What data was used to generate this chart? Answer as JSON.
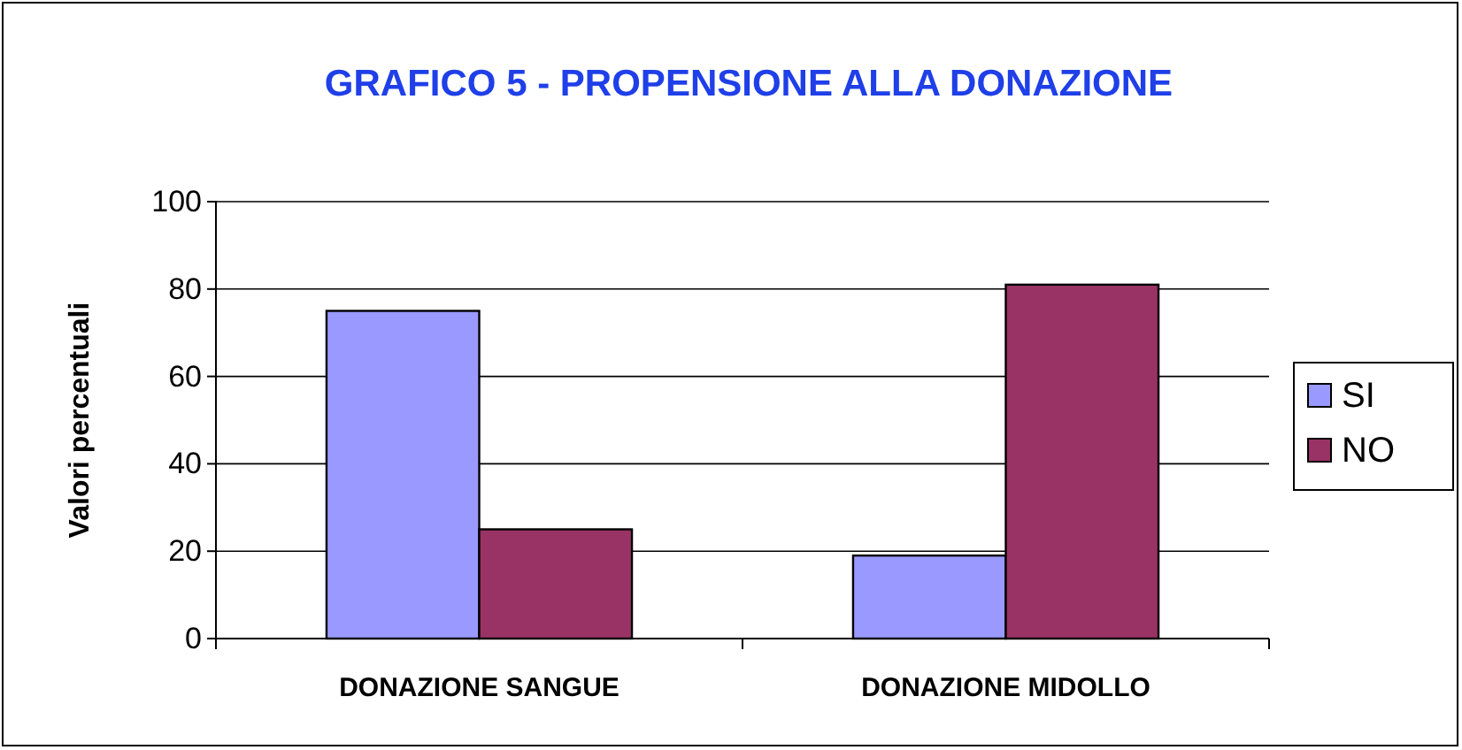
{
  "chart_data": {
    "type": "bar",
    "title": "GRAFICO 5 - PROPENSIONE ALLA DONAZIONE",
    "ylabel": "Valori percentuali",
    "categories": [
      "DONAZIONE SANGUE",
      "DONAZIONE MIDOLLO"
    ],
    "series": [
      {
        "name": "SI",
        "color": "#9999ff",
        "values": [
          75,
          19
        ]
      },
      {
        "name": "NO",
        "color": "#993366",
        "values": [
          25,
          81
        ]
      }
    ],
    "ylim": [
      0,
      100
    ],
    "yticks": [
      0,
      20,
      40,
      60,
      80,
      100
    ],
    "grid": "y",
    "legend": "right"
  }
}
